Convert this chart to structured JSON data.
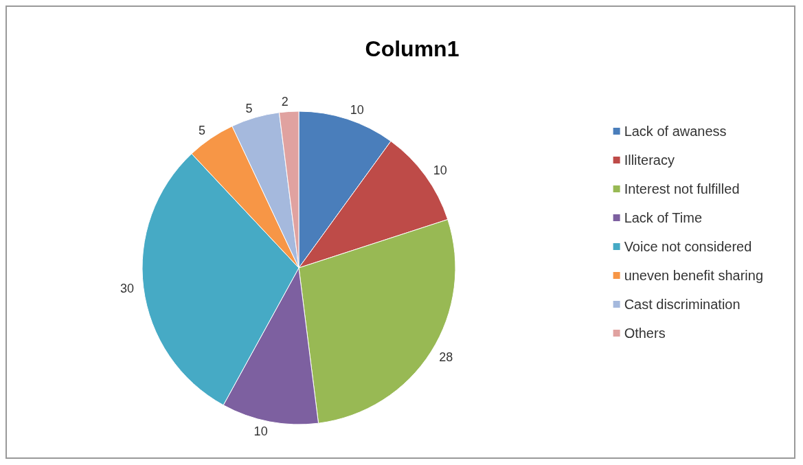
{
  "chart_data": {
    "type": "pie",
    "title": "Column1",
    "categories": [
      "Lack of awaness",
      "Illiteracy",
      "Interest not fulfilled",
      "Lack of Time",
      "Voice not considered",
      "uneven benefit sharing",
      "Cast discrimination",
      "Others"
    ],
    "values": [
      10,
      10,
      28,
      10,
      30,
      5,
      5,
      2
    ],
    "colors": [
      "#4a7ebb",
      "#be4b48",
      "#98b954",
      "#7d60a0",
      "#46aac5",
      "#f79646",
      "#a5b9dd",
      "#e0a2a0"
    ],
    "data_labels": true,
    "legend": "right"
  }
}
